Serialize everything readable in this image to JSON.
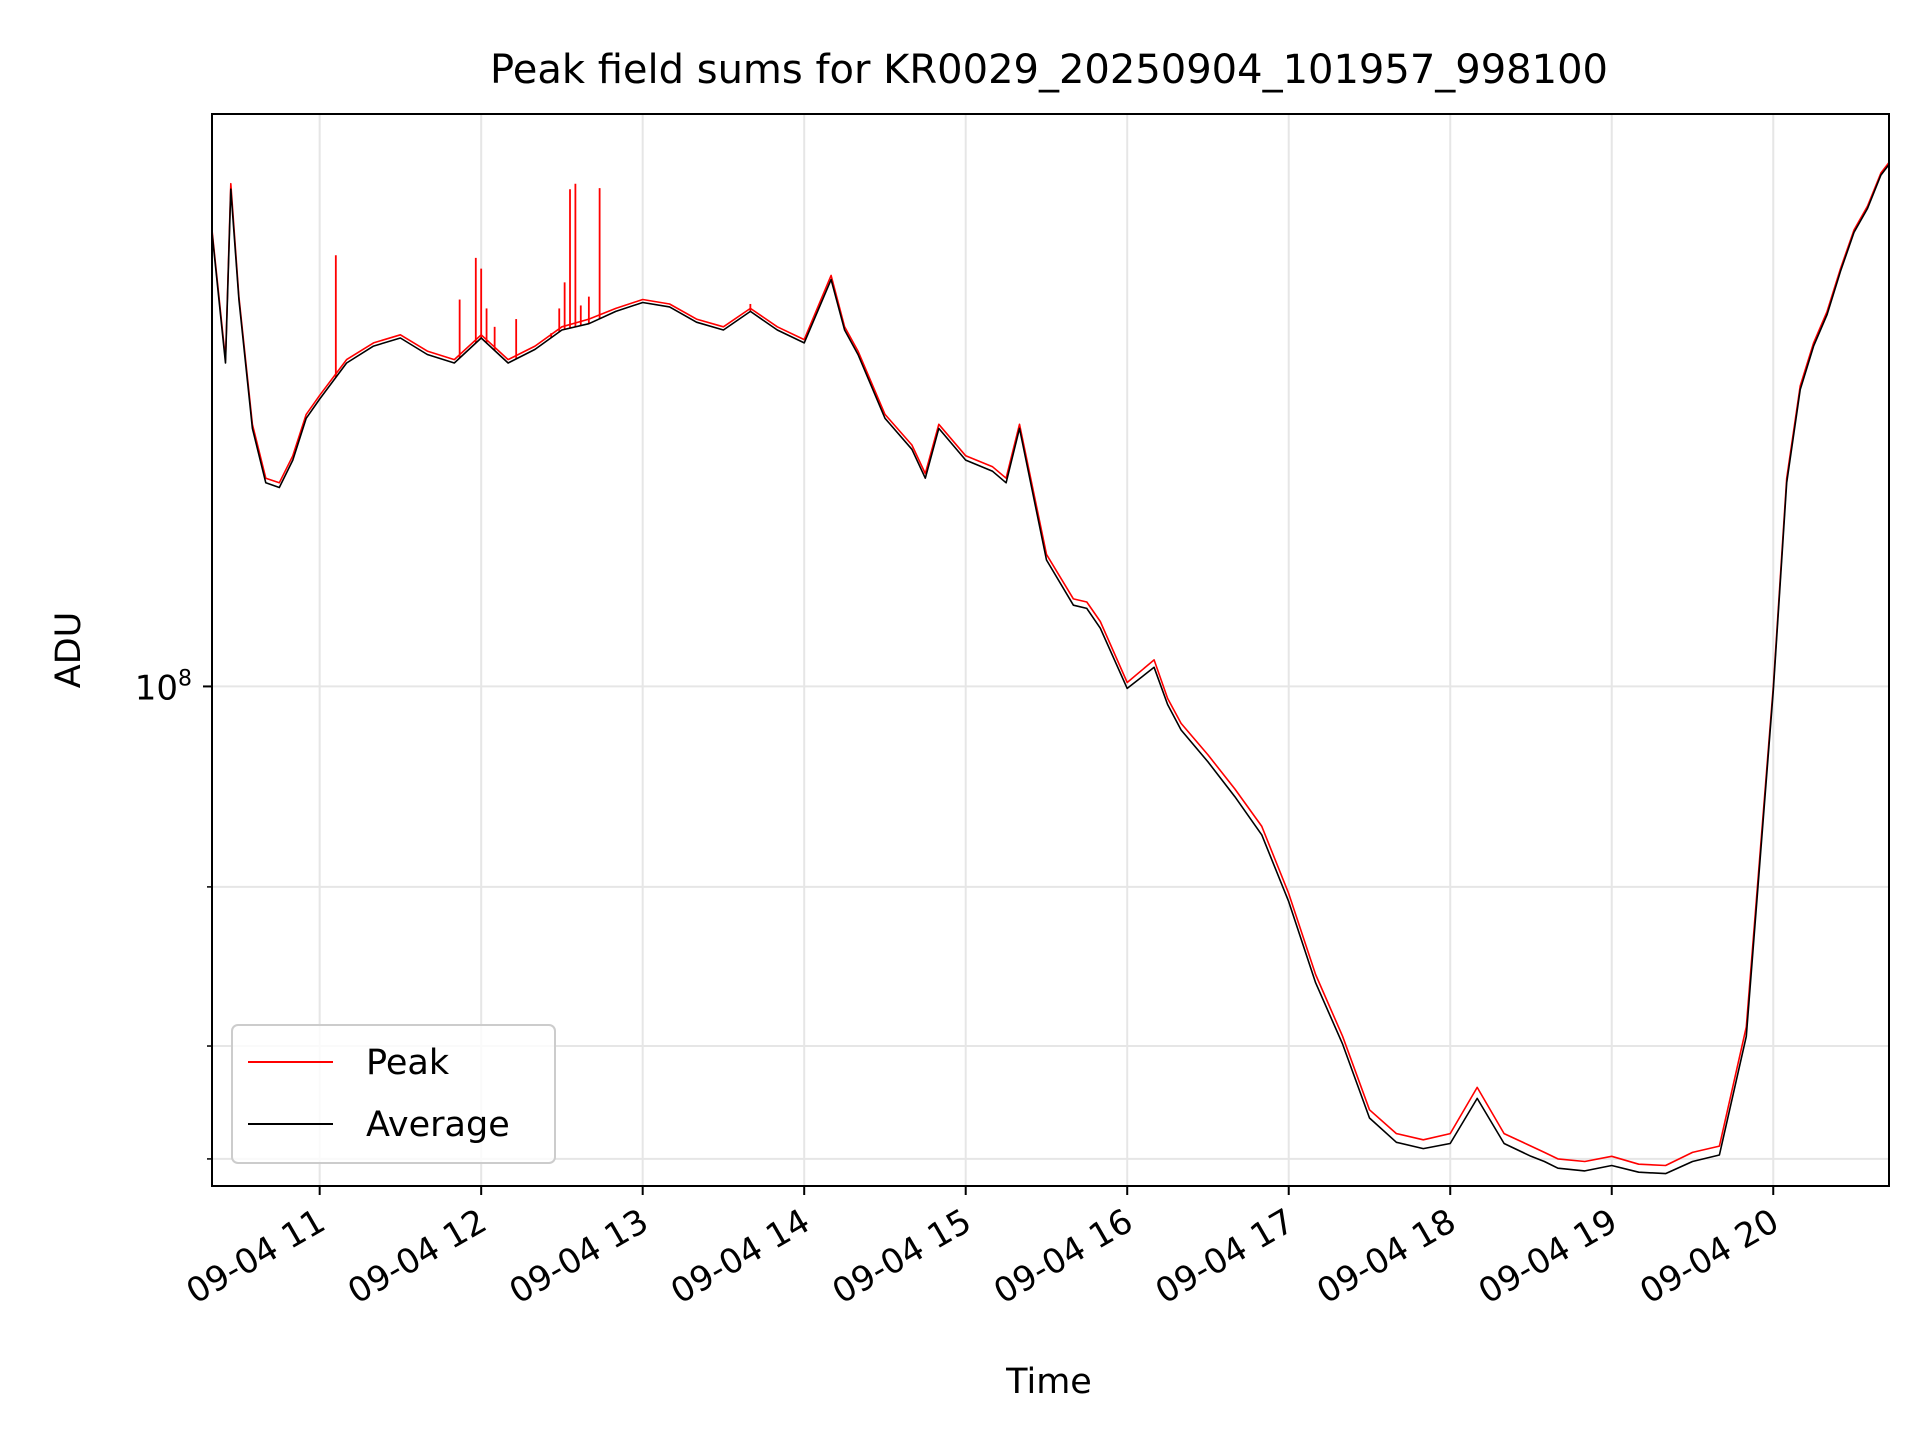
{
  "chart_data": {
    "type": "line",
    "title": "Peak field sums for KR0029_20250904_101957_998100",
    "xlabel": "Time",
    "ylabel": "ADU",
    "x_ticks": [
      "09-04 11",
      "09-04 12",
      "09-04 13",
      "09-04 14",
      "09-04 15",
      "09-04 16",
      "09-04 17",
      "09-04 18",
      "09-04 19",
      "09-04 20"
    ],
    "y_ticks": [
      {
        "label": "10",
        "exponent": "8",
        "value": 100000000
      }
    ],
    "y_minor_ticks": [
      30000000,
      40000000,
      60000000
    ],
    "y_scale": "log",
    "ylim": [
      28000000,
      430000000
    ],
    "xlim": [
      "2025-09-04 10:20",
      "2025-09-04 20:43"
    ],
    "grid": true,
    "legend": {
      "position": "lower-left"
    },
    "series": [
      {
        "name": "Peak",
        "color": "#ff0000",
        "x": [
          "10:20",
          "10:25",
          "10:27",
          "10:30",
          "10:35",
          "10:40",
          "10:45",
          "10:50",
          "10:55",
          "11:00",
          "11:10",
          "11:20",
          "11:30",
          "11:40",
          "11:50",
          "12:00",
          "12:10",
          "12:20",
          "12:30",
          "12:40",
          "12:50",
          "13:00",
          "13:10",
          "13:20",
          "13:30",
          "13:40",
          "13:50",
          "14:00",
          "14:10",
          "14:15",
          "14:20",
          "14:30",
          "14:40",
          "14:45",
          "14:50",
          "15:00",
          "15:10",
          "15:15",
          "15:20",
          "15:30",
          "15:40",
          "15:45",
          "15:50",
          "16:00",
          "16:10",
          "16:15",
          "16:20",
          "16:30",
          "16:40",
          "16:50",
          "17:00",
          "17:10",
          "17:20",
          "17:30",
          "17:40",
          "17:50",
          "18:00",
          "18:10",
          "18:20",
          "18:30",
          "18:35",
          "18:40",
          "18:50",
          "19:00",
          "19:10",
          "19:20",
          "19:30",
          "19:40",
          "19:50",
          "20:00",
          "20:05",
          "20:10",
          "20:15",
          "20:20",
          "20:25",
          "20:30",
          "20:35",
          "20:40",
          "20:43"
        ],
        "y": [
          320000000,
          230000000,
          360000000,
          270000000,
          195000000,
          170000000,
          168000000,
          180000000,
          200000000,
          210000000,
          230000000,
          240000000,
          245000000,
          235000000,
          230000000,
          245000000,
          230000000,
          238000000,
          250000000,
          255000000,
          262000000,
          268000000,
          265000000,
          255000000,
          250000000,
          262000000,
          250000000,
          242000000,
          285000000,
          250000000,
          235000000,
          200000000,
          185000000,
          172000000,
          195000000,
          180000000,
          175000000,
          170000000,
          195000000,
          140000000,
          125000000,
          124000000,
          118000000,
          101000000,
          107000000,
          97000000,
          91000000,
          84000000,
          77000000,
          70000000,
          59000000,
          48000000,
          41000000,
          34000000,
          32000000,
          31500000,
          32000000,
          36000000,
          32000000,
          31000000,
          30500000,
          30000000,
          29800000,
          30200000,
          29600000,
          29500000,
          30500000,
          31000000,
          42000000,
          100000000,
          170000000,
          215000000,
          240000000,
          260000000,
          290000000,
          320000000,
          340000000,
          370000000,
          380000000
        ]
      },
      {
        "name": "Average",
        "color": "#000000",
        "x": [
          "10:20",
          "10:25",
          "10:27",
          "10:30",
          "10:35",
          "10:40",
          "10:45",
          "10:50",
          "10:55",
          "11:00",
          "11:10",
          "11:20",
          "11:30",
          "11:40",
          "11:50",
          "12:00",
          "12:10",
          "12:20",
          "12:30",
          "12:40",
          "12:50",
          "13:00",
          "13:10",
          "13:20",
          "13:30",
          "13:40",
          "13:50",
          "14:00",
          "14:10",
          "14:15",
          "14:20",
          "14:30",
          "14:40",
          "14:45",
          "14:50",
          "15:00",
          "15:10",
          "15:15",
          "15:20",
          "15:30",
          "15:40",
          "15:45",
          "15:50",
          "16:00",
          "16:10",
          "16:15",
          "16:20",
          "16:30",
          "16:40",
          "16:50",
          "17:00",
          "17:10",
          "17:20",
          "17:30",
          "17:40",
          "17:50",
          "18:00",
          "18:10",
          "18:20",
          "18:30",
          "18:35",
          "18:40",
          "18:50",
          "19:00",
          "19:10",
          "19:20",
          "19:30",
          "19:40",
          "19:50",
          "20:00",
          "20:05",
          "20:10",
          "20:15",
          "20:20",
          "20:25",
          "20:30",
          "20:35",
          "20:40",
          "20:43"
        ],
        "y": [
          318000000,
          228000000,
          355000000,
          268000000,
          193000000,
          168000000,
          166000000,
          178000000,
          198000000,
          208000000,
          228000000,
          238000000,
          243000000,
          233000000,
          228000000,
          243000000,
          228000000,
          236000000,
          248000000,
          252000000,
          260000000,
          266000000,
          263000000,
          253000000,
          248000000,
          260000000,
          248000000,
          240000000,
          282000000,
          248000000,
          233000000,
          198000000,
          183000000,
          170000000,
          193000000,
          178000000,
          173000000,
          168000000,
          193000000,
          138000000,
          123000000,
          122000000,
          116000000,
          99500000,
          105000000,
          95500000,
          89500000,
          82500000,
          75500000,
          68500000,
          57800000,
          47000000,
          40200000,
          33300000,
          31300000,
          30800000,
          31200000,
          35000000,
          31200000,
          30200000,
          29800000,
          29300000,
          29100000,
          29500000,
          29000000,
          28900000,
          29800000,
          30300000,
          41000000,
          99000000,
          168000000,
          213000000,
          238000000,
          258000000,
          288000000,
          318000000,
          338000000,
          368000000,
          378000000
        ]
      }
    ],
    "peak_spikes": [
      {
        "x": "11:06",
        "y": 300000000
      },
      {
        "x": "11:52",
        "y": 268000000
      },
      {
        "x": "11:58",
        "y": 298000000
      },
      {
        "x": "12:00",
        "y": 290000000
      },
      {
        "x": "12:02",
        "y": 262000000
      },
      {
        "x": "12:05",
        "y": 250000000
      },
      {
        "x": "12:13",
        "y": 255000000
      },
      {
        "x": "12:26",
        "y": 246000000
      },
      {
        "x": "12:29",
        "y": 262000000
      },
      {
        "x": "12:31",
        "y": 280000000
      },
      {
        "x": "12:33",
        "y": 355000000
      },
      {
        "x": "12:35",
        "y": 360000000
      },
      {
        "x": "12:37",
        "y": 264000000
      },
      {
        "x": "12:40",
        "y": 270000000
      },
      {
        "x": "12:44",
        "y": 356000000
      },
      {
        "x": "13:40",
        "y": 265000000
      }
    ]
  }
}
